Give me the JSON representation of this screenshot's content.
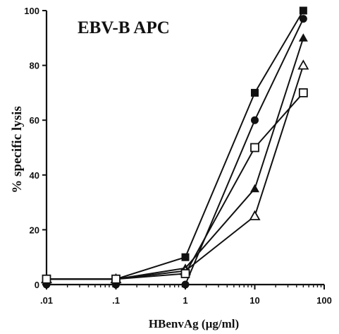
{
  "chart_data": {
    "type": "line",
    "title": "EBV-B APC",
    "xlabel": "HBenvAg (µg/ml)",
    "ylabel": "% specific lysis",
    "x_scale": "log",
    "xlim": [
      0.01,
      100
    ],
    "ylim": [
      0,
      100
    ],
    "x_tick_labels": [
      ".01",
      ".1",
      "1",
      "10",
      "100"
    ],
    "x_ticks": [
      0.01,
      0.1,
      1,
      10,
      100
    ],
    "y_ticks": [
      0,
      20,
      40,
      60,
      80,
      100
    ],
    "y_tick_labels": [
      "0",
      "20",
      "40",
      "60",
      "80",
      "100"
    ],
    "grid": false,
    "colors": {
      "ink": "#111111",
      "background": "#ffffff"
    },
    "series": [
      {
        "marker": "filled-square",
        "x": [
          0.01,
          0.1,
          1,
          10,
          50
        ],
        "y": [
          2,
          2,
          10,
          70,
          100
        ]
      },
      {
        "marker": "filled-circle",
        "x": [
          0.01,
          0.1,
          1,
          10,
          50
        ],
        "y": [
          0,
          0,
          0,
          60,
          97
        ]
      },
      {
        "marker": "filled-triangle",
        "x": [
          0.01,
          0.1,
          1,
          10,
          50
        ],
        "y": [
          2,
          2,
          6,
          35,
          90
        ]
      },
      {
        "marker": "open-triangle",
        "x": [
          0.01,
          0.1,
          1,
          10,
          50
        ],
        "y": [
          2,
          2,
          5,
          25,
          80
        ]
      },
      {
        "marker": "open-square",
        "x": [
          0.01,
          0.1,
          1,
          10,
          50
        ],
        "y": [
          2,
          2,
          4,
          50,
          70
        ]
      }
    ]
  }
}
